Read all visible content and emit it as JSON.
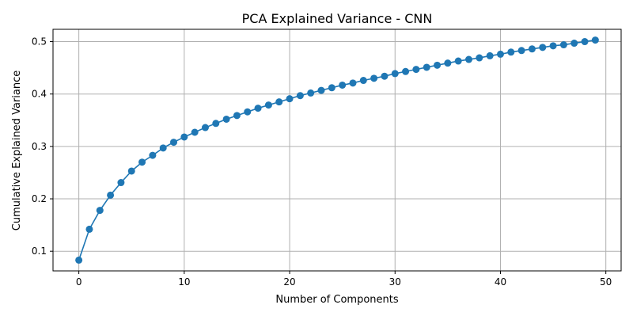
{
  "chart_data": {
    "type": "line",
    "title": "PCA Explained Variance - CNN",
    "xlabel": "Number of Components",
    "ylabel": "Cumulative Explained Variance",
    "xlim": [
      -2.45,
      51.45
    ],
    "ylim": [
      0.0625,
      0.5235
    ],
    "x_ticks": [
      0,
      10,
      20,
      30,
      40,
      50
    ],
    "y_ticks": [
      0.1,
      0.2,
      0.3,
      0.4,
      0.5
    ],
    "grid": true,
    "marker": "circle",
    "line_color": "#1f77b4",
    "series": [
      {
        "x": [
          0,
          1,
          2,
          3,
          4,
          5,
          6,
          7,
          8,
          9,
          10,
          11,
          12,
          13,
          14,
          15,
          16,
          17,
          18,
          19,
          20,
          21,
          22,
          23,
          24,
          25,
          26,
          27,
          28,
          29,
          30,
          31,
          32,
          33,
          34,
          35,
          36,
          37,
          38,
          39,
          40,
          41,
          42,
          43,
          44,
          45,
          46,
          47,
          48,
          49
        ],
        "values": [
          0.083,
          0.142,
          0.178,
          0.207,
          0.231,
          0.253,
          0.27,
          0.283,
          0.297,
          0.308,
          0.318,
          0.327,
          0.336,
          0.344,
          0.352,
          0.359,
          0.366,
          0.373,
          0.379,
          0.385,
          0.391,
          0.397,
          0.402,
          0.407,
          0.412,
          0.417,
          0.421,
          0.426,
          0.43,
          0.434,
          0.439,
          0.443,
          0.447,
          0.451,
          0.455,
          0.459,
          0.463,
          0.466,
          0.469,
          0.473,
          0.476,
          0.48,
          0.483,
          0.486,
          0.489,
          0.492,
          0.494,
          0.497,
          0.5,
          0.503
        ]
      }
    ]
  }
}
